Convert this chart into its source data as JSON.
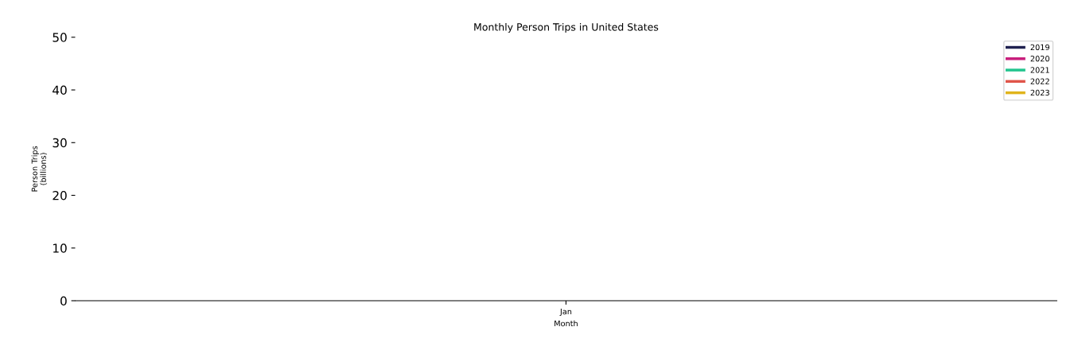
{
  "chart_data": {
    "type": "line",
    "title": "Monthly Person Trips in United States",
    "xlabel": "Month",
    "ylabel": "Person Trips\n(billions)",
    "categories": [
      "Jan"
    ],
    "series": [
      {
        "name": "2019",
        "color": "#1f2150",
        "values": [
          null
        ]
      },
      {
        "name": "2020",
        "color": "#c81d7b",
        "values": [
          null
        ]
      },
      {
        "name": "2021",
        "color": "#22c48e",
        "values": [
          null
        ]
      },
      {
        "name": "2022",
        "color": "#e0554a",
        "values": [
          null
        ]
      },
      {
        "name": "2023",
        "color": "#e0b41c",
        "values": [
          null
        ]
      }
    ],
    "ylim": [
      0,
      50
    ],
    "yticks": [
      0,
      10,
      20,
      30,
      40,
      50
    ],
    "grid": false,
    "legend": "top right",
    "marker": "none",
    "line_style": "solid"
  }
}
